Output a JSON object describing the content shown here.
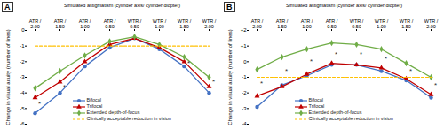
{
  "chart_data": [
    {
      "type": "line",
      "title": "A",
      "x_label": "Simulated astigmatism (cylinder axis/ cylinder diopter)",
      "y_label": "Change in visual acuity (number of lines)",
      "categories": [
        "ATR / 2.00",
        "ATR / 1.50",
        "ATR / 1.00",
        "ATR / 0.50",
        "WTR / 0.50",
        "WTR / 1.00",
        "WTR / 1.50",
        "WTR / 2.00"
      ],
      "series": [
        {
          "name": "Bifocal",
          "color": "#4472c4",
          "marker": "circle",
          "values": [
            -5.3,
            -4.0,
            -2.3,
            -1.1,
            -0.5,
            -1.2,
            -2.3,
            -4.0
          ]
        },
        {
          "name": "Trifocal",
          "color": "#c00000",
          "marker": "triangle",
          "values": [
            -4.3,
            -3.3,
            -2.0,
            -0.9,
            -0.5,
            -1.1,
            -2.0,
            -3.6
          ]
        },
        {
          "name": "Extended depth-of-focus",
          "color": "#70ad47",
          "marker": "diamond",
          "values": [
            -3.7,
            -2.6,
            -1.6,
            -0.7,
            -0.4,
            -0.9,
            -1.7,
            -3.0
          ]
        },
        {
          "name": "Clinically acceptable reduction in vision",
          "color": "#ffc000",
          "line_style": "dashed",
          "values": [
            -1,
            -1,
            -1,
            -1,
            -1,
            -1,
            -1,
            -1
          ]
        }
      ],
      "annotations": [
        {
          "text": "*",
          "x": "ATR / 2.00",
          "y": -4.7
        },
        {
          "text": "*",
          "x": "ATR / 1.50",
          "y": -3.6
        },
        {
          "text": "*",
          "x": "WTR / 1.50",
          "y": -2.1
        },
        {
          "text": "*",
          "x": "WTR / 2.00",
          "y": -3.3
        }
      ],
      "ylim": [
        -6,
        0
      ],
      "yticks": [
        -6,
        -5,
        -4,
        -3,
        -2,
        -1,
        0
      ],
      "legend": "bottom"
    },
    {
      "type": "line",
      "title": "B",
      "x_label": "Simulated astigmatism (cylinder axis/ cylinder diopter)",
      "y_label": "Change in visual acuity (number of lines)",
      "categories": [
        "ATR / 2.00",
        "ATR / 1.50",
        "ATR / 1.00",
        "ATR / 0.50",
        "WTR / 0.50",
        "WTR / 1.00",
        "WTR / 1.50",
        "WTR / 2.00"
      ],
      "series": [
        {
          "name": "Bifocal",
          "color": "#4472c4",
          "marker": "circle",
          "values": [
            -2.9,
            -1.5,
            -0.9,
            -0.2,
            -0.2,
            -0.6,
            -1.2,
            -2.3
          ]
        },
        {
          "name": "Trifocal",
          "color": "#c00000",
          "marker": "triangle",
          "values": [
            -2.2,
            -1.6,
            -0.8,
            -0.1,
            -0.2,
            -0.4,
            -1.1,
            -2.1
          ]
        },
        {
          "name": "Extended depth-of-focus",
          "color": "#70ad47",
          "marker": "diamond",
          "values": [
            -0.5,
            0.3,
            0.8,
            1.2,
            1.1,
            0.8,
            -0.1,
            -1.0
          ]
        },
        {
          "name": "Clinically acceptable reduction in vision",
          "color": "#ffc000",
          "line_style": "dashed",
          "values": [
            -1,
            -1,
            -1,
            -1,
            -1,
            -1,
            -1,
            -1
          ]
        }
      ],
      "annotations": [
        {
          "text": "*",
          "x": "ATR / 2.00",
          "y": -1.4
        },
        {
          "text": "*",
          "x": "ATR / 1.50",
          "y": -0.6
        },
        {
          "text": "*",
          "x": "ATR / 1.00",
          "y": 0.0
        },
        {
          "text": "*",
          "x": "ATR / 0.50",
          "y": 0.5
        },
        {
          "text": "*",
          "x": "WTR / 0.50",
          "y": 0.5
        },
        {
          "text": "*",
          "x": "WTR / 1.00",
          "y": 0.2
        },
        {
          "text": "*",
          "x": "WTR / 1.50",
          "y": -0.6
        },
        {
          "text": "*",
          "x": "WTR / 2.00",
          "y": -1.5
        }
      ],
      "ylim": [
        -4,
        2
      ],
      "yticks": [
        -4,
        -3,
        -2,
        -1,
        0,
        {
          "value": 1,
          "label": "+1"
        },
        {
          "value": 2,
          "label": "+2"
        }
      ],
      "legend": "bottom"
    }
  ]
}
